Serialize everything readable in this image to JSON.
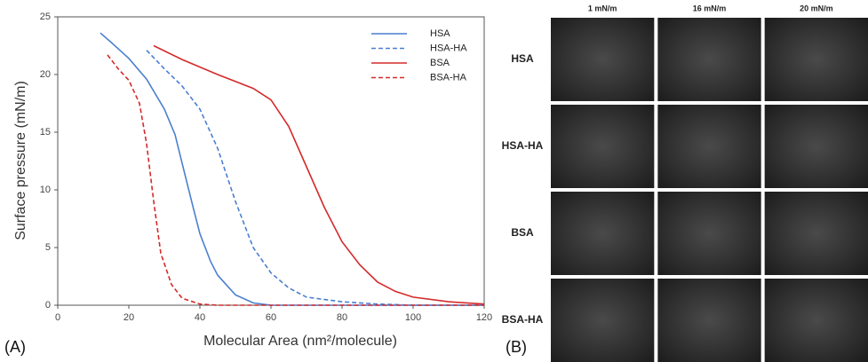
{
  "chart_data": {
    "type": "line",
    "x_label": "Molecular Area (nm²/molecule)",
    "y_label": "Surface pressure (mN/m)",
    "xlim": [
      0,
      120
    ],
    "xticks": [
      0,
      20,
      40,
      60,
      80,
      100,
      120
    ],
    "ylim": [
      0,
      25
    ],
    "yticks": [
      0,
      5,
      10,
      15,
      20,
      25
    ],
    "grid": false,
    "legend": "upper-right",
    "series": [
      {
        "name": "HSA",
        "color": "#4a7fd0",
        "dashed": false,
        "x": [
          12,
          15,
          20,
          25,
          30,
          33,
          35,
          38,
          40,
          43,
          45,
          50,
          55,
          60,
          80,
          100,
          120
        ],
        "values": [
          23.6,
          22.8,
          21.4,
          19.6,
          17,
          14.8,
          12.3,
          8.6,
          6.2,
          3.8,
          2.6,
          0.9,
          0.2,
          0,
          0,
          0,
          0
        ]
      },
      {
        "name": "HSA-HA",
        "color": "#4a7fd0",
        "dashed": true,
        "x": [
          25,
          30,
          35,
          40,
          45,
          50,
          55,
          60,
          65,
          70,
          80,
          90,
          100,
          120
        ],
        "values": [
          22.1,
          20.5,
          19,
          17,
          13.6,
          9,
          5,
          2.8,
          1.5,
          0.7,
          0.3,
          0.1,
          0,
          0
        ]
      },
      {
        "name": "BSA",
        "color": "#d42a2a",
        "dashed": false,
        "x": [
          27,
          35,
          45,
          55,
          60,
          65,
          70,
          75,
          80,
          85,
          90,
          95,
          100,
          110,
          120
        ],
        "values": [
          22.5,
          21.3,
          20,
          18.8,
          17.8,
          15.5,
          12,
          8.5,
          5.5,
          3.5,
          2,
          1.2,
          0.7,
          0.3,
          0.1
        ]
      },
      {
        "name": "BSA-HA",
        "color": "#d42a2a",
        "dashed": true,
        "x": [
          14,
          17,
          20,
          23,
          25,
          27,
          29,
          32,
          35,
          40,
          45,
          60,
          80,
          100,
          120
        ],
        "values": [
          21.7,
          20.5,
          19.5,
          17.5,
          14,
          9,
          4.5,
          1.8,
          0.6,
          0.1,
          0,
          0,
          0,
          0,
          0
        ]
      }
    ]
  },
  "panel_labels": [
    "(A)",
    "(B)"
  ],
  "images": {
    "columns": [
      "1 mN/m",
      "16 mN/m",
      "20 mN/m"
    ],
    "rows": [
      "HSA",
      "HSA-HA",
      "BSA",
      "BSA-HA"
    ]
  }
}
